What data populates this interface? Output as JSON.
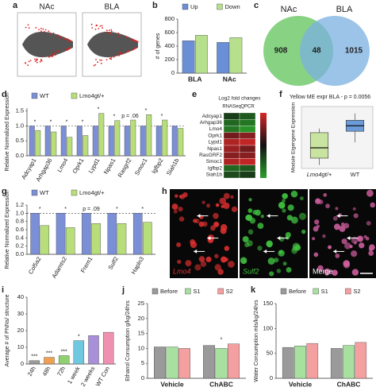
{
  "chart_data": [
    {
      "type": "ma-plot",
      "panel": "a",
      "titles": [
        "NAc",
        "BLA"
      ]
    },
    {
      "type": "bar",
      "panel": "b",
      "ylabel": "# of genes",
      "categories": [
        "BLA",
        "NAc"
      ],
      "series": [
        {
          "name": "Up",
          "color": "#6b8fd6",
          "values": [
            480,
            455
          ]
        },
        {
          "name": "Down",
          "color": "#b6e08c",
          "values": [
            560,
            525
          ]
        }
      ],
      "ylim": [
        0,
        800
      ],
      "yticks": [
        0,
        200,
        400,
        600,
        800
      ],
      "legend": "top"
    },
    {
      "type": "venn",
      "panel": "c",
      "sets": [
        {
          "name": "NAc",
          "color": "#5fc45a"
        },
        {
          "name": "BLA",
          "color": "#7ab0e0"
        }
      ],
      "values": [
        908,
        48,
        1015
      ]
    },
    {
      "type": "bar",
      "panel": "d",
      "ylabel": "Relative Normalized Expression",
      "categories": [
        "Adcyap1",
        "Arhgap36",
        "Lmo4",
        "Oprk1",
        "Lypd1",
        "Npas1",
        "Rasgrf2",
        "Smoc1",
        "Igfbp2",
        "Siah1b"
      ],
      "series": [
        {
          "name": "WT",
          "color": "#7b8fd6",
          "values": [
            1,
            1,
            1,
            1,
            1,
            1,
            1,
            1,
            1,
            1
          ]
        },
        {
          "name": "Lmo4gt/+",
          "color": "#b8de7a",
          "values": [
            0.85,
            0.8,
            0.62,
            0.68,
            1.42,
            1.18,
            1.2,
            1.38,
            1.2,
            0.92
          ]
        }
      ],
      "ylim": [
        0,
        1.6
      ],
      "yticks": [
        {
          "value": 0,
          "label": "0.0"
        },
        0.5,
        {
          "value": 1,
          "label": "1.0"
        },
        1.5
      ],
      "reference_line": 1,
      "legend": "top",
      "annotations": [
        "*",
        "*",
        "*",
        "*",
        "*",
        "*",
        "p = .06",
        "*",
        "*",
        null
      ]
    },
    {
      "type": "heatmap",
      "panel": "e",
      "title": "Log2 fold changes",
      "columns": [
        "RNASeq",
        "QPCR"
      ],
      "rows": [
        "Adcyap1",
        "Arhgap36",
        "Lmo4",
        "Oprk1",
        "Lypd1",
        "Npas1",
        "RasGRF2",
        "Smoc1",
        "Igfbp2",
        "Siah1b"
      ],
      "values": [
        [
          -0.3,
          -0.5
        ],
        [
          -0.6,
          -0.7
        ],
        [
          -0.7,
          -0.9
        ],
        [
          0.5,
          0.6
        ],
        [
          0.8,
          0.9
        ],
        [
          0.7,
          0.5
        ],
        [
          0.6,
          0.6
        ],
        [
          0.8,
          0.9
        ],
        [
          -0.6,
          -0.5
        ],
        [
          -0.4,
          -0.3
        ]
      ],
      "colorlim": [
        -1,
        1
      ],
      "colors": [
        "#2ca02c",
        "#111111",
        "#d62728"
      ]
    },
    {
      "type": "box",
      "panel": "f",
      "title": "Yellow ME expr BLA - p = 0.0056",
      "ylabel": "Module Eigengene Expression",
      "categories": [
        "Lmo4gt/+",
        "WT"
      ],
      "boxes": [
        {
          "min": -0.45,
          "q1": -0.35,
          "median": -0.2,
          "q3": 0.02,
          "max": 0.08
        },
        {
          "min": -0.12,
          "q1": 0.04,
          "median": 0.12,
          "q3": 0.2,
          "max": 0.3
        }
      ],
      "colors": [
        "#c8e4a0",
        "#6b9bd8"
      ],
      "ylim": [
        -0.5,
        0.4
      ]
    },
    {
      "type": "bar",
      "panel": "g",
      "ylabel": "Relative Normalized Expression",
      "categories": [
        "Col5a2",
        "Adamts2",
        "Frem1",
        "Sulf2",
        "Hapln3"
      ],
      "series": [
        {
          "name": "WT",
          "color": "#7b8fd6",
          "values": [
            1,
            1,
            1,
            1,
            1
          ]
        },
        {
          "name": "Lmo4gt/+",
          "color": "#b8de7a",
          "values": [
            0.7,
            0.65,
            0.75,
            0.75,
            0.78
          ]
        }
      ],
      "ylim": [
        0,
        1.2
      ],
      "yticks": [
        {
          "value": 0,
          "label": "0.0"
        },
        0.2,
        0.4,
        0.6,
        0.8,
        {
          "value": 1,
          "label": "1.0"
        },
        1.2
      ],
      "reference_line": 1,
      "legend": "top",
      "annotations": [
        "*",
        "*",
        "p = .09",
        "*",
        "*"
      ]
    },
    {
      "type": "images",
      "panel": "h",
      "labels": [
        "Lmo4",
        "Sulf2",
        "Merge"
      ],
      "colors": [
        "#e03030",
        "#40c040",
        "#d060a0"
      ]
    },
    {
      "type": "bar",
      "panel": "i",
      "ylabel": "Average # of PNNs/ structure",
      "categories": [
        "24h",
        "48h",
        "72h",
        "1 week",
        "2 weeks",
        "WT Con"
      ],
      "values": [
        2,
        4,
        5,
        14,
        17,
        19
      ],
      "colors": [
        "#9a9a9a",
        "#f0a050",
        "#90d070",
        "#70c8e0",
        "#a88fd8",
        "#f090b0"
      ],
      "ylim": [
        0,
        40
      ],
      "yticks": [
        0,
        10,
        20,
        30,
        40
      ],
      "annotations": [
        "***",
        "***",
        "***",
        "*",
        null,
        null
      ]
    },
    {
      "type": "bar",
      "panel": "j",
      "ylabel": "Ethanol Consumption g/kg/24hrs",
      "categories": [
        "Vehicle",
        "ChABC"
      ],
      "series": [
        {
          "name": "Before",
          "color": "#9a9a9a",
          "values": [
            10.5,
            11
          ]
        },
        {
          "name": "S1",
          "color": "#a8e0a0",
          "values": [
            10.5,
            10
          ]
        },
        {
          "name": "S2",
          "color": "#f4a0a0",
          "values": [
            10,
            11.5
          ]
        }
      ],
      "ylim": [
        0,
        25
      ],
      "yticks": [
        0,
        5,
        10,
        15,
        20,
        25
      ],
      "legend": "top",
      "annotations": [
        null,
        "*"
      ]
    },
    {
      "type": "bar",
      "panel": "k",
      "ylabel": "Water Consumption mls/kg/24hrs",
      "categories": [
        "Vehicle",
        "ChABC"
      ],
      "series": [
        {
          "name": "Before",
          "color": "#9a9a9a",
          "values": [
            62,
            60
          ]
        },
        {
          "name": "S1",
          "color": "#a8e0a0",
          "values": [
            65,
            66
          ]
        },
        {
          "name": "S2",
          "color": "#f4a0a0",
          "values": [
            70,
            72
          ]
        }
      ],
      "ylim": [
        0,
        150
      ],
      "yticks": [
        0,
        50,
        100,
        150
      ],
      "legend": "top",
      "annotations": [
        null,
        null
      ]
    }
  ]
}
